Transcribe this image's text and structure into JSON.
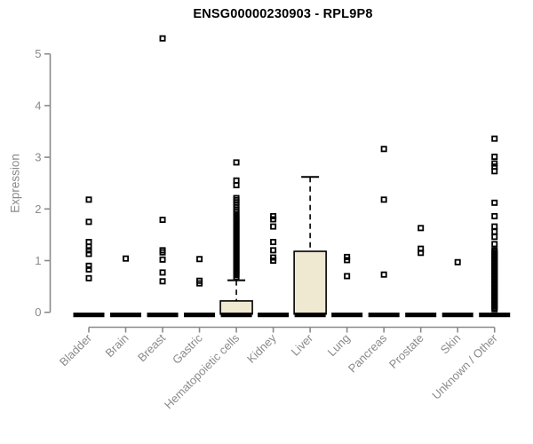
{
  "title": "ENSG00000230903 - RPL9P8",
  "chart_data": {
    "type": "boxplot",
    "title": "ENSG00000230903 - RPL9P8",
    "ylabel": "Expression",
    "xlabel": "",
    "ylim": [
      0,
      5
    ],
    "yticks": [
      0,
      1,
      2,
      3,
      4,
      5
    ],
    "grid": false,
    "legend": "none",
    "colors": {
      "box_fill": "#f0e9d2",
      "box_stroke": "#000000",
      "median": "#000000",
      "outlier": "#000000",
      "axis": "#8a8a8a",
      "tick_label": "#8a8a8a",
      "title": "#000000"
    },
    "categories": [
      "Bladder",
      "Brain",
      "Breast",
      "Gastric",
      "Hematopoietic cells",
      "Kidney",
      "Liver",
      "Lung",
      "Pancreas",
      "Prostate",
      "Skin",
      "Unknown / Other"
    ],
    "boxes": [
      {
        "category": "Bladder",
        "median": 0,
        "q1": 0,
        "q3": 0,
        "whisker_low": 0,
        "whisker_high": 0,
        "outliers": [
          2.18,
          1.75,
          1.36,
          1.27,
          1.2,
          1.13,
          0.9,
          0.83,
          0.66
        ]
      },
      {
        "category": "Brain",
        "median": 0,
        "q1": 0,
        "q3": 0,
        "whisker_low": 0,
        "whisker_high": 0,
        "outliers": [
          1.04
        ]
      },
      {
        "category": "Breast",
        "median": 0,
        "q1": 0,
        "q3": 0,
        "whisker_low": 0,
        "whisker_high": 0,
        "outliers": [
          5.3,
          1.79,
          1.2,
          1.16,
          1.02,
          0.77,
          0.6
        ]
      },
      {
        "category": "Gastric",
        "median": 0,
        "q1": 0,
        "q3": 0,
        "whisker_low": 0,
        "whisker_high": 0,
        "outliers": [
          1.03,
          0.61,
          0.56
        ]
      },
      {
        "category": "Hematopoietic cells",
        "median": 0,
        "q1": 0,
        "q3": 0.22,
        "whisker_low": 0,
        "whisker_high": 0.62,
        "outliers": [
          2.9,
          2.55,
          2.46,
          2.21,
          2.17,
          2.13,
          2.08,
          2.03,
          1.98,
          1.94,
          1.9,
          1.86,
          1.83,
          1.8,
          1.77,
          1.74,
          1.71,
          1.68,
          1.65,
          1.62,
          1.59,
          1.56,
          1.53,
          1.5,
          1.47,
          1.44,
          1.41,
          1.38,
          1.35,
          1.32,
          1.29,
          1.26,
          1.23,
          1.2,
          1.17,
          1.14,
          1.11,
          1.08,
          1.05,
          1.02,
          0.99,
          0.96,
          0.93,
          0.9,
          0.87,
          0.84,
          0.81,
          0.78,
          0.75,
          0.72,
          0.68
        ]
      },
      {
        "category": "Kidney",
        "median": 0,
        "q1": 0,
        "q3": 0,
        "whisker_low": 0,
        "whisker_high": 0,
        "outliers": [
          1.86,
          1.8,
          1.66,
          1.36,
          1.2,
          1.06,
          1.0
        ]
      },
      {
        "category": "Liver",
        "median": 0,
        "q1": 0,
        "q3": 1.18,
        "whisker_low": 0,
        "whisker_high": 2.62,
        "outliers": []
      },
      {
        "category": "Lung",
        "median": 0,
        "q1": 0,
        "q3": 0,
        "whisker_low": 0,
        "whisker_high": 0,
        "outliers": [
          1.07,
          1.01,
          0.7
        ]
      },
      {
        "category": "Pancreas",
        "median": 0,
        "q1": 0,
        "q3": 0,
        "whisker_low": 0,
        "whisker_high": 0,
        "outliers": [
          3.16,
          2.18,
          0.73
        ]
      },
      {
        "category": "Prostate",
        "median": 0,
        "q1": 0,
        "q3": 0,
        "whisker_low": 0,
        "whisker_high": 0,
        "outliers": [
          1.63,
          1.23,
          1.15
        ]
      },
      {
        "category": "Skin",
        "median": 0,
        "q1": 0,
        "q3": 0,
        "whisker_low": 0,
        "whisker_high": 0,
        "outliers": [
          0.97
        ]
      },
      {
        "category": "Unknown / Other",
        "median": 0,
        "q1": 0,
        "q3": 0,
        "whisker_low": 0,
        "whisker_high": 0,
        "outliers": [
          3.36,
          3.01,
          2.88,
          2.82,
          2.73,
          2.12,
          1.86,
          1.66,
          1.56,
          1.46,
          1.32,
          1.2,
          1.17,
          1.14,
          1.11,
          1.08,
          1.05,
          1.02,
          0.99,
          0.96,
          0.93,
          0.9,
          0.87,
          0.84,
          0.81,
          0.78,
          0.75,
          0.72,
          0.69,
          0.66,
          0.63,
          0.6,
          0.57,
          0.54,
          0.51,
          0.48,
          0.45,
          0.42,
          0.39,
          0.36,
          0.33,
          0.3,
          0.27,
          0.24,
          0.21,
          0.18,
          0.15,
          0.12,
          0.09,
          0.06
        ]
      }
    ]
  }
}
